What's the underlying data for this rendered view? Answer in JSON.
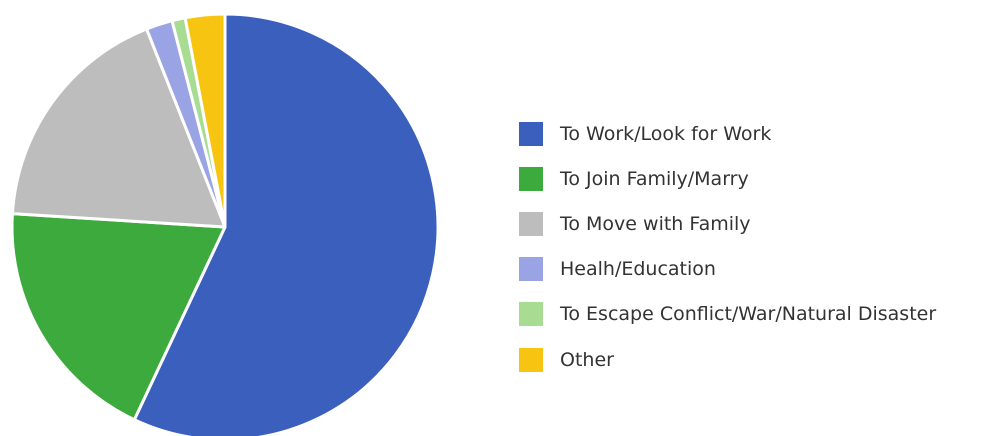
{
  "chart_data": {
    "type": "pie",
    "start_angle_deg": 0,
    "direction": "clockwise",
    "legend_position": "right",
    "slices": [
      {
        "label": "To Work/Look for Work",
        "value": 57,
        "color": "#3a5fbd"
      },
      {
        "label": "To Join Family/Marry",
        "value": 19,
        "color": "#3caa3c"
      },
      {
        "label": "To Move with Family",
        "value": 18,
        "color": "#bdbdbd"
      },
      {
        "label": "Healh/Education",
        "value": 2,
        "color": "#9aa3e3"
      },
      {
        "label": "To Escape Conflict/War/Natural Disaster",
        "value": 1,
        "color": "#a8dc93"
      },
      {
        "label": "Other",
        "value": 3,
        "color": "#f7c511"
      }
    ]
  }
}
